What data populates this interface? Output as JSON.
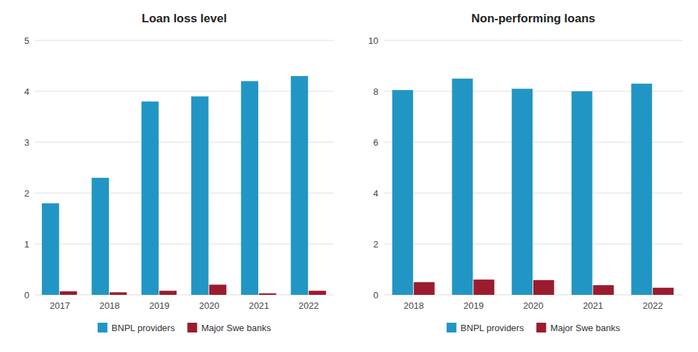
{
  "chart_data": [
    {
      "type": "bar",
      "title": "Loan loss level",
      "categories": [
        "2017",
        "2018",
        "2019",
        "2020",
        "2021",
        "2022"
      ],
      "series": [
        {
          "name": "BNPL providers",
          "color": "#2196C4",
          "values": [
            1.8,
            2.3,
            3.8,
            3.9,
            4.2,
            4.3
          ]
        },
        {
          "name": "Major Swe banks",
          "color": "#9B1C2E",
          "values": [
            0.07,
            0.05,
            0.08,
            0.2,
            0.03,
            0.08
          ]
        }
      ],
      "ylim": [
        0,
        5
      ],
      "yticks": [
        0,
        1,
        2,
        3,
        4,
        5
      ],
      "grid": true,
      "legend": "bottom"
    },
    {
      "type": "bar",
      "title": "Non-performing loans",
      "categories": [
        "2018",
        "2019",
        "2020",
        "2021",
        "2022"
      ],
      "series": [
        {
          "name": "BNPL providers",
          "color": "#2196C4",
          "values": [
            8.05,
            8.5,
            8.1,
            8.0,
            8.3
          ]
        },
        {
          "name": "Major Swe banks",
          "color": "#9B1C2E",
          "values": [
            0.5,
            0.6,
            0.58,
            0.38,
            0.28
          ]
        }
      ],
      "ylim": [
        0,
        10
      ],
      "yticks": [
        0,
        2,
        4,
        6,
        8,
        10
      ],
      "grid": true,
      "legend": "bottom"
    }
  ]
}
